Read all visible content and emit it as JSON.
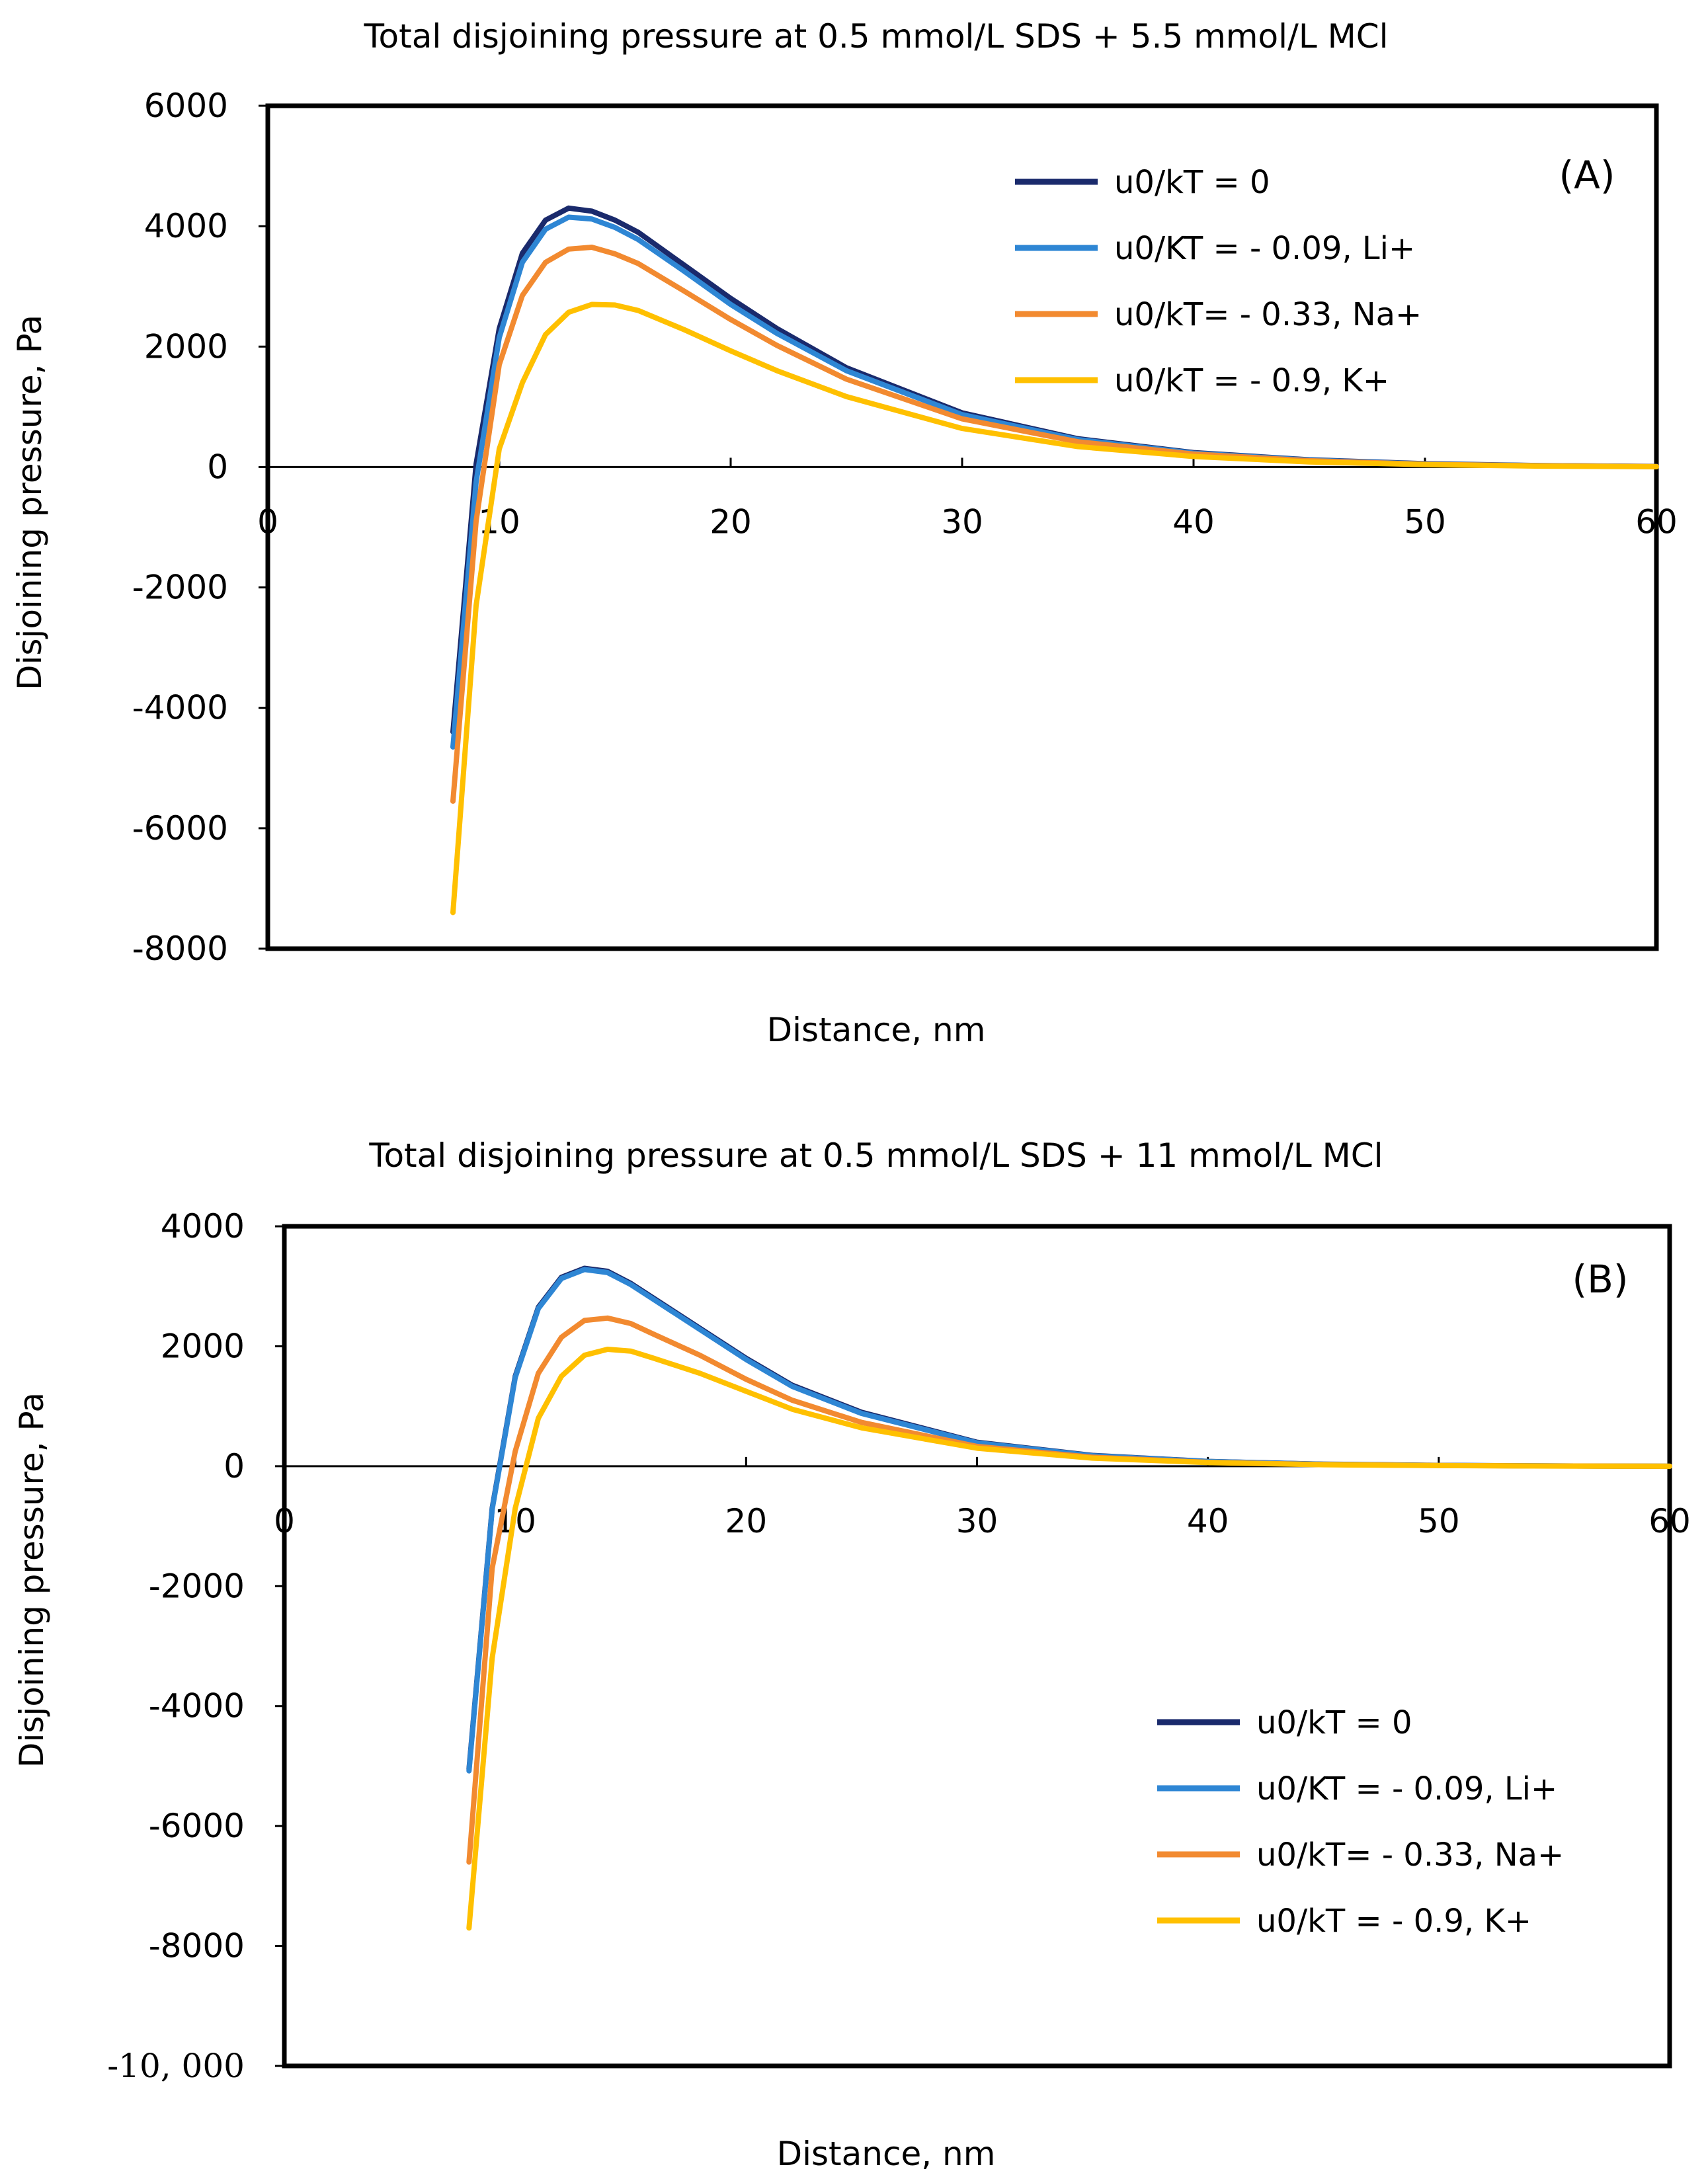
{
  "chart_data": [
    {
      "type": "line",
      "panel_label": "(A)",
      "title": "Total disjoining pressure at 0.5 mmol/L SDS + 5.5 mmol/L MCl",
      "xlabel": "Distance, nm",
      "ylabel": "Disjoining pressure, Pa",
      "xlim": [
        0,
        60
      ],
      "ylim": [
        -8000,
        6000
      ],
      "x_ticks": [
        "0",
        "10",
        "20",
        "30",
        "40",
        "50",
        "60"
      ],
      "y_ticks": [
        "6000",
        "4000",
        "2000",
        "0",
        "-2000",
        "-4000",
        "-6000",
        "-8000"
      ],
      "legend_position": "top-right",
      "x": [
        8,
        9,
        10,
        11,
        12,
        13,
        14,
        15,
        16,
        18,
        20,
        22,
        25,
        30,
        35,
        40,
        45,
        50,
        55,
        60
      ],
      "series": [
        {
          "name": "u0/kT = 0",
          "color": "#1a2a6c",
          "values": [
            -4400,
            50,
            2300,
            3550,
            4100,
            4300,
            4250,
            4100,
            3900,
            3350,
            2800,
            2300,
            1650,
            900,
            470,
            240,
            120,
            55,
            25,
            10
          ]
        },
        {
          "name": "u0/KT = - 0.09, Li+",
          "color": "#2e86d4",
          "values": [
            -4650,
            -250,
            2150,
            3400,
            3950,
            4150,
            4120,
            3980,
            3780,
            3250,
            2700,
            2220,
            1600,
            870,
            455,
            230,
            115,
            50,
            22,
            8
          ]
        },
        {
          "name": "u0/kT= - 0.33, Na+",
          "color": "#f28a30",
          "values": [
            -5550,
            -900,
            1700,
            2850,
            3400,
            3620,
            3650,
            3540,
            3380,
            2920,
            2450,
            2020,
            1460,
            800,
            420,
            215,
            105,
            45,
            20,
            8
          ]
        },
        {
          "name": "u0/kT = - 0.9, K+",
          "color": "#ffc000",
          "values": [
            -7400,
            -2300,
            300,
            1400,
            2200,
            2570,
            2700,
            2690,
            2600,
            2280,
            1930,
            1600,
            1170,
            640,
            340,
            175,
            85,
            40,
            15,
            5
          ]
        }
      ]
    },
    {
      "type": "line",
      "panel_label": "(B)",
      "title": "Total disjoining pressure at 0.5 mmol/L SDS + 11 mmol/L MCl",
      "xlabel": "Distance, nm",
      "ylabel": "Disjoining pressure, Pa",
      "xlim": [
        0,
        60
      ],
      "ylim": [
        -10000,
        4000
      ],
      "x_ticks": [
        "0",
        "10",
        "20",
        "30",
        "40",
        "50",
        "60"
      ],
      "y_ticks": [
        "4000",
        "2000",
        "0",
        "-2000",
        "-4000",
        "-6000",
        "-8000",
        "-10, 000"
      ],
      "legend_position": "bottom-right",
      "x": [
        8,
        9,
        10,
        11,
        12,
        13,
        14,
        15,
        16,
        18,
        20,
        22,
        25,
        30,
        35,
        40,
        45,
        50,
        55,
        60
      ],
      "series": [
        {
          "name": "u0/kT = 0",
          "color": "#1a2a6c",
          "values": [
            -5050,
            -700,
            1500,
            2650,
            3150,
            3300,
            3250,
            3050,
            2800,
            2300,
            1800,
            1350,
            900,
            400,
            180,
            80,
            35,
            15,
            5,
            0
          ]
        },
        {
          "name": "u0/KT = - 0.09, Li+",
          "color": "#2e86d4",
          "values": [
            -5080,
            -720,
            1480,
            2630,
            3130,
            3280,
            3230,
            3030,
            2780,
            2280,
            1780,
            1330,
            880,
            390,
            175,
            78,
            33,
            14,
            5,
            0
          ]
        },
        {
          "name": "u0/kT= - 0.33, Na+",
          "color": "#f28a30",
          "values": [
            -6600,
            -1700,
            250,
            1550,
            2150,
            2430,
            2470,
            2380,
            2200,
            1850,
            1450,
            1100,
            730,
            330,
            150,
            65,
            28,
            12,
            4,
            0
          ]
        },
        {
          "name": "u0/kT = - 0.9, K+",
          "color": "#ffc000",
          "values": [
            -7700,
            -3200,
            -700,
            800,
            1500,
            1850,
            1950,
            1920,
            1800,
            1550,
            1250,
            950,
            640,
            300,
            135,
            60,
            25,
            10,
            3,
            0
          ]
        }
      ]
    }
  ]
}
